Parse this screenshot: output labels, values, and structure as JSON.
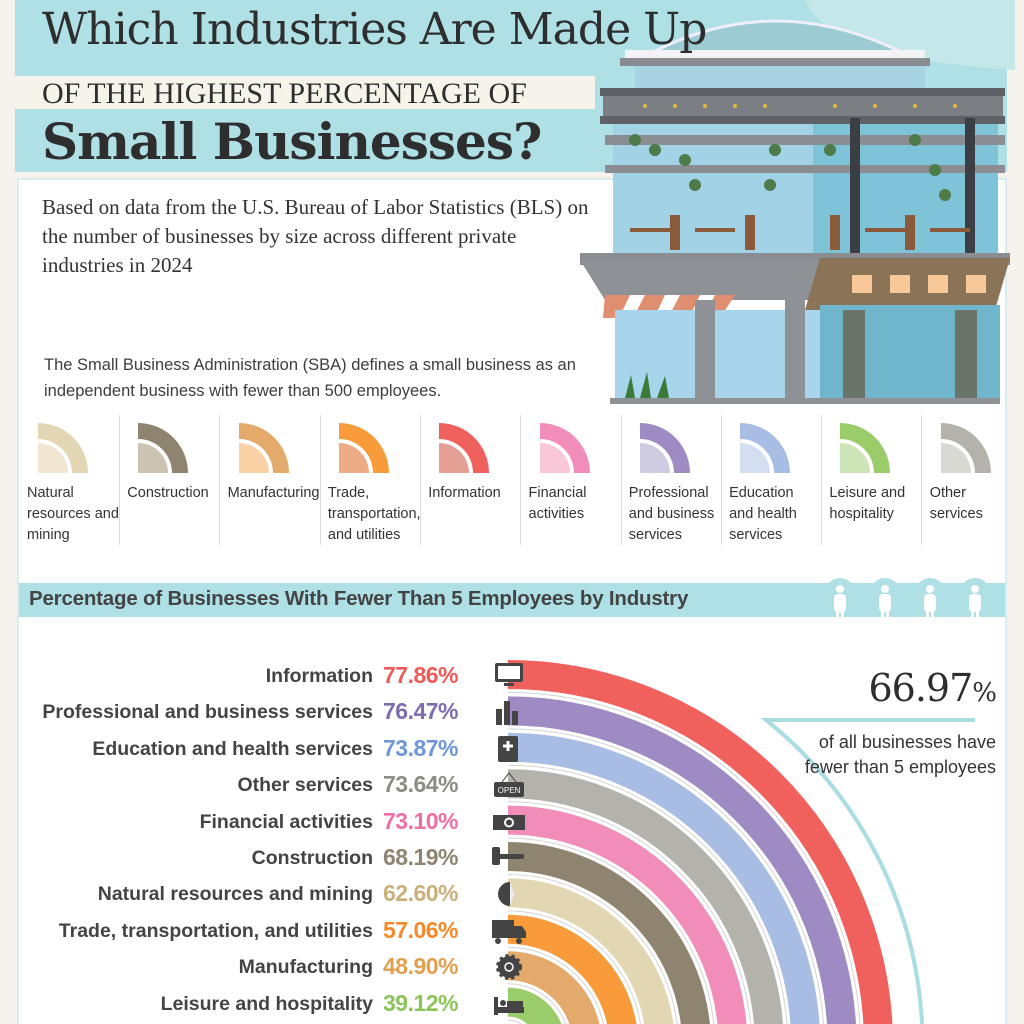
{
  "header": {
    "title_line1": "Which Industries Are Made Up",
    "title_line2": "OF THE HIGHEST PERCENTAGE OF",
    "title_line3": "Small Businesses?"
  },
  "intro": "Based on data from the U.S. Bureau of Labor Statistics (BLS) on the number of businesses by size across different private industries in 2024",
  "sba_definition": "The Small Business Administration (SBA) defines a small business as an independent business with fewer than 500 employees.",
  "legend": [
    {
      "label": "Natural resources and mining",
      "color": "#e3d6b2",
      "light": "#f1e6d2"
    },
    {
      "label": "Construction",
      "color": "#8f8470",
      "light": "#cbc4b3"
    },
    {
      "label": "Manufacturing",
      "color": "#e4aa6c",
      "light": "#fbd2a6"
    },
    {
      "label": "Trade, transportation, and utilities",
      "color": "#f99b3a",
      "light": "#eeac86"
    },
    {
      "label": "Information",
      "color": "#f0605d",
      "light": "#e4a095"
    },
    {
      "label": "Financial activities",
      "color": "#f28cb8",
      "light": "#f9c8d8"
    },
    {
      "label": "Professional and business services",
      "color": "#9e8bc3",
      "light": "#cfcbe0"
    },
    {
      "label": "Education and health services",
      "color": "#a8bde3",
      "light": "#d3def0"
    },
    {
      "label": "Leisure and hospitality",
      "color": "#9acd6a",
      "light": "#cde5b6"
    },
    {
      "label": "Other services",
      "color": "#b3b3ab",
      "light": "#d9d9d4"
    }
  ],
  "section_title": "Percentage of Businesses With Fewer Than 5 Employees by Industry",
  "summary": {
    "value": "66.97",
    "unit": "%",
    "note": "of all businesses have fewer than 5 employees"
  },
  "chart_data": {
    "type": "bar",
    "style": "radial quarter-arc bars",
    "title": "Percentage of Businesses With Fewer Than 5 Employees by Industry",
    "unit": "%",
    "categories": [
      "Information",
      "Professional and business services",
      "Education and health services",
      "Other services",
      "Financial activities",
      "Construction",
      "Natural resources and mining",
      "Trade, transportation, and utilities",
      "Manufacturing",
      "Leisure and hospitality"
    ],
    "values": [
      77.86,
      76.47,
      73.87,
      73.64,
      73.1,
      68.19,
      62.6,
      57.06,
      48.9,
      39.12
    ],
    "labels": [
      "77.86%",
      "76.47%",
      "73.87%",
      "73.64%",
      "73.10%",
      "68.19%",
      "62.60%",
      "57.06%",
      "48.90%",
      "39.12%"
    ],
    "colors": [
      "#f0605d",
      "#9e8bc3",
      "#a8bde3",
      "#b3b3ab",
      "#f28cb8",
      "#8f8470",
      "#e3d6b2",
      "#f99b3a",
      "#e4aa6c",
      "#9acd6a"
    ],
    "value_colors": [
      "#ee5a57",
      "#7d6cae",
      "#6e97d6",
      "#8c8c84",
      "#ef6ea8",
      "#8f8470",
      "#c9b07a",
      "#f5892a",
      "#e0a050",
      "#8cc45a"
    ],
    "icons": [
      "monitor-icon",
      "bar-chart-icon",
      "medical-book-icon",
      "open-sign-icon",
      "money-icon",
      "hammer-icon",
      "drop-icon",
      "truck-icon",
      "gear-icon",
      "bed-icon"
    ],
    "overall": 66.97
  },
  "building": {
    "sign": "OPEN"
  }
}
